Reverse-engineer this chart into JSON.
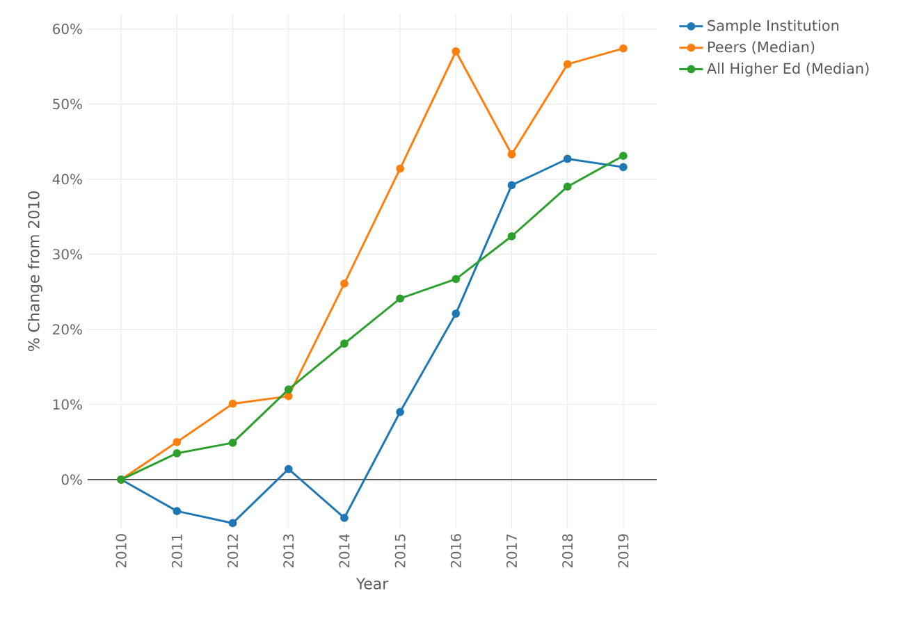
{
  "chart_data": {
    "type": "line",
    "xlabel": "Year",
    "ylabel": "% Change from 2010",
    "x": [
      2010,
      2011,
      2012,
      2013,
      2014,
      2015,
      2016,
      2017,
      2018,
      2019
    ],
    "series": [
      {
        "name": "Sample Institution",
        "color": "#1f77b4",
        "values": [
          0,
          -4.2,
          -5.8,
          1.4,
          -5.1,
          9.0,
          22.1,
          39.2,
          42.7,
          41.6
        ]
      },
      {
        "name": "Peers (Median)",
        "color": "#ff7f0e",
        "values": [
          0,
          5.0,
          10.1,
          11.1,
          26.1,
          41.4,
          57.0,
          43.3,
          55.3,
          57.4
        ]
      },
      {
        "name": "All Higher Ed (Median)",
        "color": "#2ca02c",
        "values": [
          0,
          3.5,
          4.9,
          12.0,
          18.1,
          24.1,
          26.7,
          32.4,
          39.0,
          43.1
        ]
      }
    ],
    "xlim": [
      2009.4,
      2019.6
    ],
    "ylim": [
      -6.5,
      62
    ],
    "xticks": [
      2010,
      2011,
      2012,
      2013,
      2014,
      2015,
      2016,
      2017,
      2018,
      2019
    ],
    "yticks": [
      {
        "value": 0,
        "label": "0%"
      },
      {
        "value": 10,
        "label": "10%"
      },
      {
        "value": 20,
        "label": "20%"
      },
      {
        "value": 30,
        "label": "30%"
      },
      {
        "value": 40,
        "label": "40%"
      },
      {
        "value": 50,
        "label": "50%"
      },
      {
        "value": 60,
        "label": "60%"
      }
    ],
    "ref_lines": [
      {
        "axis": "y",
        "value": 0,
        "color": "#444444"
      }
    ],
    "grid": true,
    "legend": "top right",
    "marker": "circle",
    "line_style": "solid"
  }
}
